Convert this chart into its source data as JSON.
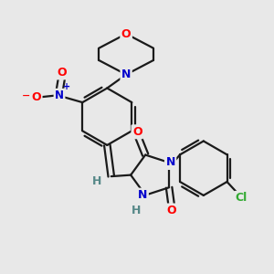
{
  "bg_color": "#e8e8e8",
  "bond_color": "#1a1a1a",
  "atom_colors": {
    "O": "#ff0000",
    "N": "#0000cc",
    "Cl": "#33aa33",
    "H": "#558888",
    "C": "#1a1a1a"
  },
  "figsize": [
    3.0,
    3.0
  ],
  "dpi": 100
}
